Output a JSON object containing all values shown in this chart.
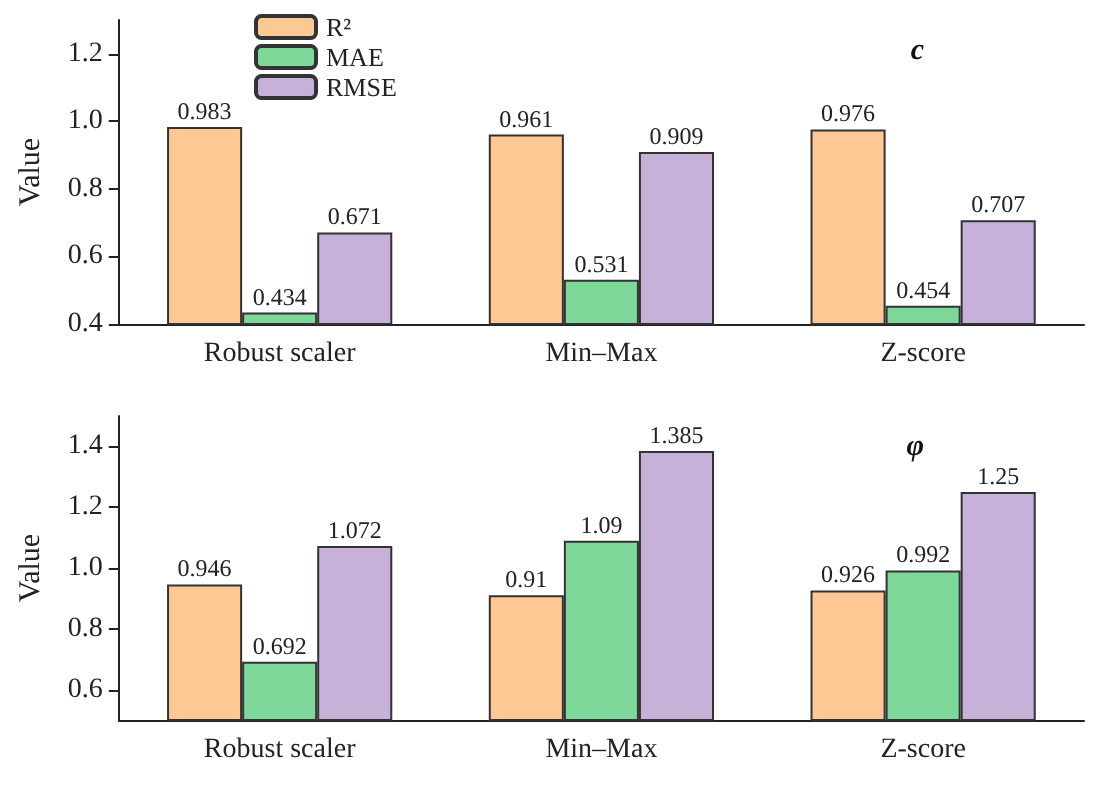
{
  "chart_data": [
    {
      "type": "bar",
      "categories": [
        "Robust scaler",
        "Min–Max",
        "Z-score"
      ],
      "ylabel": "Value",
      "ylim": [
        0.4,
        1.3
      ],
      "yticks": [
        0.4,
        0.6,
        0.8,
        {
          "value": 1,
          "label": "1.0"
        },
        1.2
      ],
      "annotations": [
        "c"
      ],
      "legend": "top left",
      "data_labels": true,
      "grid": false,
      "series": [
        {
          "name": "R²",
          "color": "#fec895",
          "values": [
            0.983,
            0.961,
            0.976
          ]
        },
        {
          "name": "MAE",
          "color": "#7dd89a",
          "values": [
            0.434,
            0.531,
            0.454
          ]
        },
        {
          "name": "RMSE",
          "color": "#c8b1d8",
          "values": [
            0.671,
            0.909,
            0.707
          ]
        }
      ]
    },
    {
      "type": "bar",
      "categories": [
        "Robust scaler",
        "Min–Max",
        "Z-score"
      ],
      "ylabel": "Value",
      "ylim": [
        0.5,
        1.5
      ],
      "yticks": [
        0.6,
        0.8,
        {
          "value": 1,
          "label": "1.0"
        },
        1.2,
        1.4
      ],
      "annotations": [
        "φ"
      ],
      "legend": false,
      "data_labels": true,
      "grid": false,
      "series": [
        {
          "color": "#fec895",
          "values": [
            0.946,
            0.91,
            0.926
          ]
        },
        {
          "color": "#7dd89a",
          "values": [
            0.692,
            1.09,
            0.992
          ]
        },
        {
          "color": "#c8b1d8",
          "values": [
            1.072,
            1.385,
            1.25
          ]
        }
      ]
    }
  ]
}
